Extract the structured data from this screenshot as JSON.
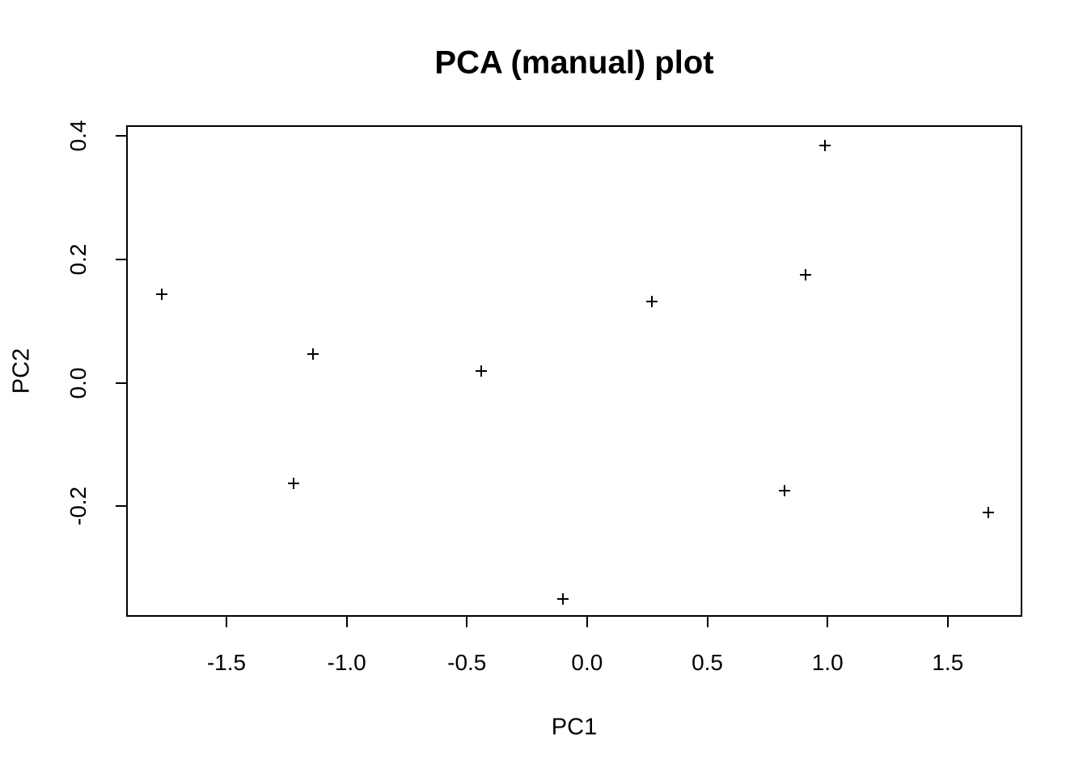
{
  "chart_data": {
    "type": "scatter",
    "title": "PCA (manual) plot",
    "xlabel": "PC1",
    "ylabel": "PC2",
    "marker": "plus",
    "marker_color": "#000000",
    "background_color": "#ffffff",
    "grid": false,
    "legend": false,
    "xlim": [
      -1.917,
      1.81
    ],
    "ylim": [
      -0.379,
      0.417
    ],
    "x_ticks": [
      -1.5,
      -1.0,
      -0.5,
      0.0,
      0.5,
      1.0,
      1.5
    ],
    "x_tick_labels": [
      "-1.5",
      "-1.0",
      "-0.5",
      "0.0",
      "0.5",
      "1.0",
      "1.5"
    ],
    "y_ticks": [
      -0.2,
      0.0,
      0.2,
      0.4
    ],
    "y_tick_labels": [
      "-0.2",
      "0.0",
      "0.2",
      "0.4"
    ],
    "points": [
      {
        "x": -1.77,
        "y": 0.143
      },
      {
        "x": -1.14,
        "y": 0.047
      },
      {
        "x": -1.22,
        "y": -0.163
      },
      {
        "x": -0.44,
        "y": 0.019
      },
      {
        "x": -0.1,
        "y": -0.35
      },
      {
        "x": 0.27,
        "y": 0.131
      },
      {
        "x": 0.91,
        "y": 0.175
      },
      {
        "x": 0.99,
        "y": 0.384
      },
      {
        "x": 0.82,
        "y": -0.175
      },
      {
        "x": 1.67,
        "y": -0.21
      }
    ]
  }
}
